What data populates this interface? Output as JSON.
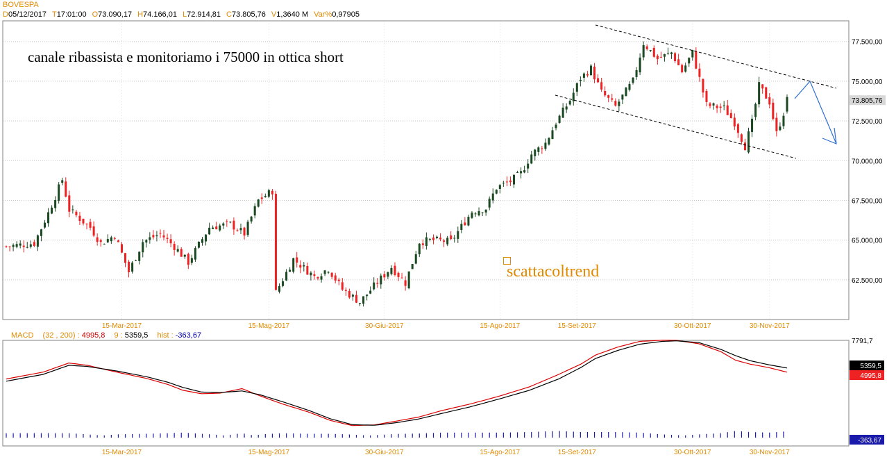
{
  "header": {
    "symbol": "BOVESPA",
    "fields": [
      {
        "k": "D",
        "v": "05/12/2017"
      },
      {
        "k": "T",
        "v": "17:01:00"
      },
      {
        "k": "O",
        "v": "73.090,17"
      },
      {
        "k": "H",
        "v": "74.166,01"
      },
      {
        "k": "L",
        "v": "72.914,81"
      },
      {
        "k": "C",
        "v": "73.805,76"
      },
      {
        "k": "V",
        "v": "1,3640 M"
      },
      {
        "k": "Var%",
        "v": "0,97905"
      }
    ]
  },
  "annotation": "canale ribassista e monitoriamo i 75000 in ottica short",
  "watermark": "scattacoltrend",
  "macd_header": {
    "name": "MACD",
    "params": "(32 , 200) :",
    "macd_value": "4995,8",
    "signal_period": "9 :",
    "signal_value": "5359,5",
    "hist_label": "hist :",
    "hist_value": "-363,67"
  },
  "colors": {
    "up": "#1b4a22",
    "down": "#ee2222",
    "accent": "#e08a00",
    "macd_line": "#dd0000",
    "signal_line": "#000000",
    "hist": "#1a1aaa"
  },
  "chart_data": [
    {
      "type": "candlestick",
      "title": "BOVESPA",
      "ylim": [
        60000,
        78800
      ],
      "y_ticks": [
        "77.500,00",
        "75.000,00",
        "72.500,00",
        "70.000,00",
        "67.500,00",
        "65.000,00",
        "62.500,00"
      ],
      "y_tick_values": [
        77500,
        75000,
        72500,
        70000,
        67500,
        65000,
        62500
      ],
      "last_price_label": "73.805,76",
      "x_labels": [
        "15-Mar-2017",
        "15-Mag-2017",
        "30-Giu-2017",
        "15-Ago-2017",
        "15-Set-2017",
        "30-Ott-2017",
        "30-Nov-2017"
      ],
      "x_label_index": [
        33,
        75,
        108,
        141,
        163,
        196,
        218
      ],
      "n_bars": 224,
      "close_anchors": [
        [
          0,
          64600
        ],
        [
          8,
          64800
        ],
        [
          12,
          66700
        ],
        [
          16,
          68800
        ],
        [
          18,
          66900
        ],
        [
          24,
          65800
        ],
        [
          27,
          64800
        ],
        [
          31,
          65300
        ],
        [
          35,
          63000
        ],
        [
          39,
          64900
        ],
        [
          44,
          65400
        ],
        [
          48,
          64600
        ],
        [
          52,
          63600
        ],
        [
          58,
          65800
        ],
        [
          64,
          66000
        ],
        [
          68,
          65400
        ],
        [
          72,
          67500
        ],
        [
          76,
          68100
        ],
        [
          77,
          61700
        ],
        [
          82,
          63800
        ],
        [
          88,
          62700
        ],
        [
          92,
          63200
        ],
        [
          96,
          61900
        ],
        [
          101,
          61100
        ],
        [
          105,
          62100
        ],
        [
          110,
          63300
        ],
        [
          114,
          62300
        ],
        [
          118,
          64900
        ],
        [
          122,
          65000
        ],
        [
          127,
          64900
        ],
        [
          133,
          66800
        ],
        [
          137,
          67000
        ],
        [
          140,
          68300
        ],
        [
          144,
          68700
        ],
        [
          147,
          69200
        ],
        [
          150,
          70400
        ],
        [
          154,
          71100
        ],
        [
          157,
          72400
        ],
        [
          161,
          73800
        ],
        [
          164,
          75200
        ],
        [
          167,
          75800
        ],
        [
          170,
          74300
        ],
        [
          174,
          73400
        ],
        [
          179,
          75000
        ],
        [
          182,
          77400
        ],
        [
          186,
          76400
        ],
        [
          190,
          76800
        ],
        [
          193,
          75600
        ],
        [
          196,
          76800
        ],
        [
          200,
          73500
        ],
        [
          205,
          73300
        ],
        [
          208,
          72400
        ],
        [
          211,
          70900
        ],
        [
          213,
          72400
        ],
        [
          215,
          74700
        ],
        [
          218,
          73700
        ],
        [
          220,
          71700
        ],
        [
          222,
          73000
        ],
        [
          223,
          73806
        ]
      ],
      "channel_upper": [
        [
          858,
          36
        ],
        [
          1205,
          127
        ]
      ],
      "channel_lower": [
        [
          800,
          137
        ],
        [
          1147,
          228
        ]
      ],
      "forecast_arrow": [
        [
          1145,
          142
        ],
        [
          1167,
          117
        ],
        [
          1205,
          207
        ]
      ]
    },
    {
      "type": "line",
      "title": "MACD",
      "ylim": [
        -1000,
        7791.7
      ],
      "y_top_label": "7791,7",
      "series": [
        {
          "name": "MACD",
          "color": "#dd0000",
          "anchors": [
            [
              0,
              4400
            ],
            [
              10,
              5000
            ],
            [
              17,
              5800
            ],
            [
              22,
              5600
            ],
            [
              30,
              5000
            ],
            [
              38,
              4450
            ],
            [
              44,
              3900
            ],
            [
              48,
              3400
            ],
            [
              53,
              3100
            ],
            [
              58,
              3150
            ],
            [
              64,
              3550
            ],
            [
              69,
              2900
            ],
            [
              75,
              2200
            ],
            [
              82,
              1500
            ],
            [
              88,
              750
            ],
            [
              94,
              300
            ],
            [
              100,
              360
            ],
            [
              106,
              700
            ],
            [
              112,
              1050
            ],
            [
              118,
              1600
            ],
            [
              126,
              2200
            ],
            [
              134,
              2900
            ],
            [
              142,
              3700
            ],
            [
              150,
              4800
            ],
            [
              156,
              5700
            ],
            [
              160,
              6500
            ],
            [
              166,
              7200
            ],
            [
              172,
              7700
            ],
            [
              178,
              7800
            ],
            [
              182,
              7791
            ],
            [
              188,
              7500
            ],
            [
              194,
              6800
            ],
            [
              198,
              6050
            ],
            [
              202,
              5700
            ],
            [
              207,
              5400
            ],
            [
              212,
              4995
            ]
          ]
        },
        {
          "name": "Signal",
          "color": "#000000",
          "anchors": [
            [
              0,
              4200
            ],
            [
              10,
              4800
            ],
            [
              17,
              5600
            ],
            [
              22,
              5500
            ],
            [
              30,
              5100
            ],
            [
              38,
              4600
            ],
            [
              44,
              4100
            ],
            [
              48,
              3650
            ],
            [
              53,
              3250
            ],
            [
              58,
              3200
            ],
            [
              64,
              3350
            ],
            [
              69,
              3000
            ],
            [
              75,
              2400
            ],
            [
              82,
              1650
            ],
            [
              88,
              900
            ],
            [
              94,
              380
            ],
            [
              100,
              330
            ],
            [
              106,
              560
            ],
            [
              112,
              880
            ],
            [
              118,
              1350
            ],
            [
              126,
              1950
            ],
            [
              134,
              2650
            ],
            [
              142,
              3400
            ],
            [
              150,
              4400
            ],
            [
              156,
              5400
            ],
            [
              160,
              6200
            ],
            [
              166,
              6900
            ],
            [
              172,
              7450
            ],
            [
              178,
              7700
            ],
            [
              182,
              7750
            ],
            [
              188,
              7600
            ],
            [
              194,
              7000
            ],
            [
              198,
              6450
            ],
            [
              202,
              6000
            ],
            [
              207,
              5650
            ],
            [
              212,
              5359
            ]
          ]
        }
      ],
      "last_labels": {
        "signal": "5359,5",
        "macd": "4995,8",
        "hist": "-363,67"
      }
    }
  ]
}
